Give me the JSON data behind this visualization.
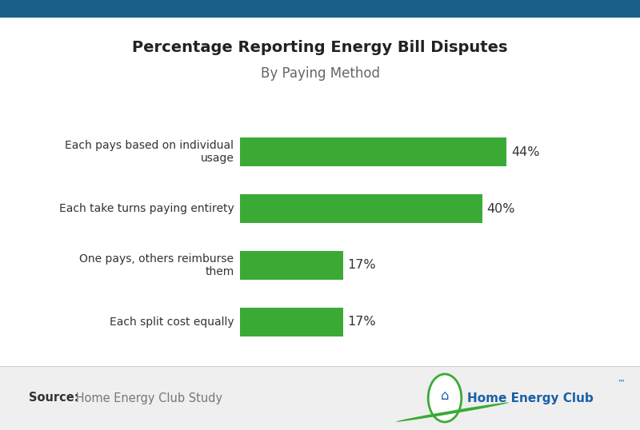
{
  "title": "Percentage Reporting Energy Bill Disputes",
  "subtitle": "By Paying Method",
  "categories": [
    "Each pays based on individual\nusage",
    "Each take turns paying entirety",
    "One pays, others reimburse\nthem",
    "Each split cost equally"
  ],
  "values": [
    44,
    40,
    17,
    17
  ],
  "bar_color": "#3aaa35",
  "label_color": "#333333",
  "title_color": "#222222",
  "subtitle_color": "#666666",
  "value_label_color": "#333333",
  "background_color": "#ffffff",
  "footer_bg_color": "#efefef",
  "top_bar_color": "#1a5f8a",
  "source_bold": "Source:",
  "source_text": " Home Energy Club Study",
  "source_color": "#777777",
  "source_bold_color": "#333333",
  "xlim": [
    0,
    55
  ],
  "bar_height": 0.5
}
